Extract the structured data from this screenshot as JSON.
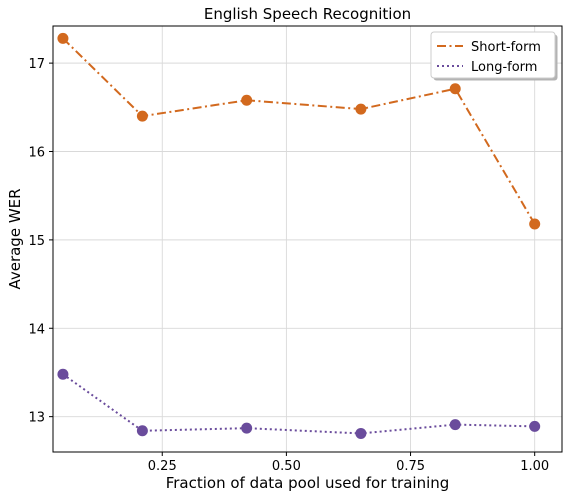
{
  "chart_data": {
    "type": "line",
    "title": "English Speech Recognition",
    "xlabel": "Fraction of data pool used for training",
    "ylabel": "Average WER",
    "xlim": [
      0.03,
      1.055
    ],
    "ylim": [
      12.6,
      17.42
    ],
    "xticks": [
      0.25,
      0.5,
      0.75,
      1.0
    ],
    "xtick_labels": [
      "0.25",
      "0.50",
      "0.75",
      "1.00"
    ],
    "yticks": [
      13,
      14,
      15,
      16,
      17
    ],
    "ytick_labels": [
      "13",
      "14",
      "15",
      "16",
      "17"
    ],
    "grid": true,
    "legend_position": "upper right",
    "x": [
      0.05,
      0.21,
      0.42,
      0.65,
      0.84,
      1.0
    ],
    "series": [
      {
        "name": "Short-form",
        "values": [
          17.28,
          16.4,
          16.58,
          16.48,
          16.71,
          15.18
        ],
        "color": "#d2691e",
        "linestyle": "dash-dot",
        "marker": "circle"
      },
      {
        "name": "Long-form",
        "values": [
          13.48,
          12.84,
          12.87,
          12.81,
          12.91,
          12.89
        ],
        "color": "#6a4c9c",
        "linestyle": "dotted",
        "marker": "circle"
      }
    ]
  }
}
